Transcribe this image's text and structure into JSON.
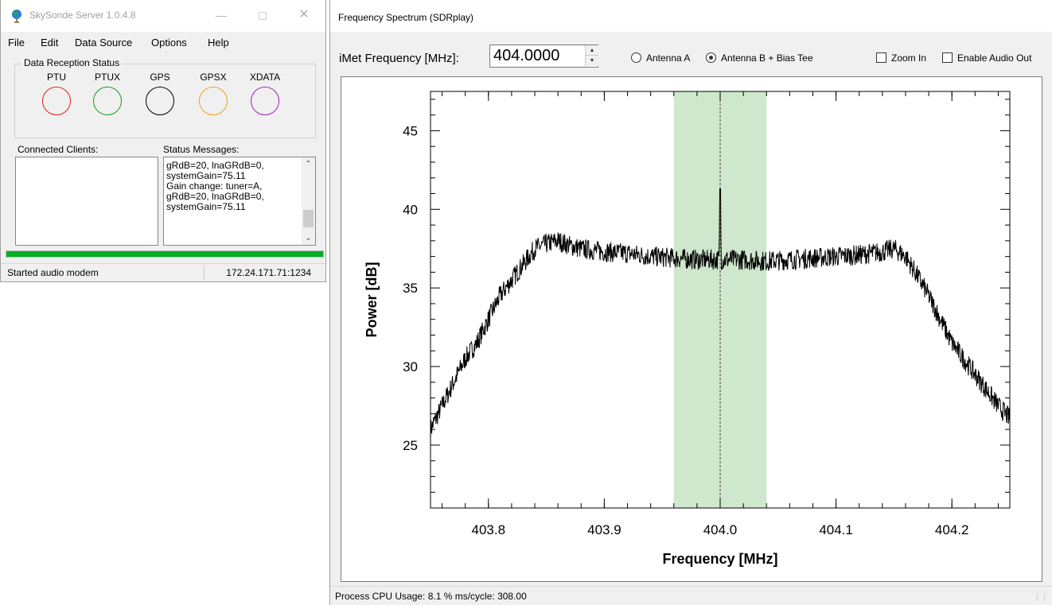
{
  "server_window": {
    "title": "SkySonde Server 1.0.4.8",
    "menu": [
      "File",
      "Edit",
      "Data Source",
      "Options",
      "Help"
    ],
    "reception_group_label": "Data Reception Status",
    "indicators": [
      {
        "label": "PTU",
        "color": "#e02020"
      },
      {
        "label": "PTUX",
        "color": "#1a9a1a"
      },
      {
        "label": "GPS",
        "color": "#000000"
      },
      {
        "label": "GPSX",
        "color": "#f0a020"
      },
      {
        "label": "XDATA",
        "color": "#a020c0"
      }
    ],
    "connected_clients_label": "Connected Clients:",
    "connected_clients": [],
    "status_messages_label": "Status Messages:",
    "status_messages": "gRdB=20, lnaGRdB=0,\nsystemGain=75.11\nGain change: tuner=A,\ngRdB=20, lnaGRdB=0,\nsystemGain=75.11",
    "progress_fraction": 1.0,
    "progress_color": "#06b025",
    "statusbar_text": "Started audio modem",
    "statusbar_address": "172.24.171.71:1234"
  },
  "spectrum_window": {
    "title": "Frequency Spectrum (SDRplay)",
    "frequency_label": "iMet Frequency [MHz]:",
    "frequency_value": "404.0000",
    "antenna_a_label": "Antenna A",
    "antenna_b_label": "Antenna B + Bias Tee",
    "antenna_selected": "B",
    "zoom_in_label": "Zoom In",
    "zoom_in_checked": false,
    "enable_audio_label": "Enable Audio Out",
    "enable_audio_checked": false,
    "statusbar_text": "Process CPU Usage: 8.1 %  ms/cycle: 308.00"
  },
  "chart_data": {
    "type": "line",
    "xlabel": "Frequency [MHz]",
    "ylabel": "Power [dB]",
    "xlim": [
      403.75,
      404.25
    ],
    "ylim": [
      21,
      47.5
    ],
    "xticks": [
      403.8,
      403.9,
      404.0,
      404.1,
      404.2
    ],
    "xtick_labels": [
      "403.8",
      "403.9",
      "404.0",
      "404.1",
      "404.2"
    ],
    "yticks": [
      25,
      30,
      35,
      40,
      45
    ],
    "ytick_labels": [
      "25",
      "30",
      "35",
      "40",
      "45"
    ],
    "grid": false,
    "legend": "none",
    "line_color": "#000000",
    "highlight_band": {
      "x": [
        403.96,
        404.04
      ],
      "color": "#cfe7cc"
    },
    "center_marker": {
      "x": 404.0,
      "style": "dashed"
    },
    "series": [
      {
        "x": [
          403.75,
          403.76,
          403.77,
          403.78,
          403.79,
          403.8,
          403.81,
          403.82,
          403.83,
          403.84,
          403.85,
          403.86,
          403.87,
          403.88,
          403.9,
          403.92,
          403.94,
          403.96,
          403.98,
          403.999,
          404.0,
          404.001,
          404.02,
          404.04,
          404.06,
          404.08,
          404.1,
          404.12,
          404.14,
          404.15,
          404.16,
          404.17,
          404.18,
          404.19,
          404.2,
          404.21,
          404.22,
          404.23,
          404.24,
          404.25
        ],
        "y": [
          26.0,
          27.5,
          29.0,
          30.5,
          31.5,
          33.0,
          34.5,
          35.5,
          36.5,
          37.5,
          37.8,
          38.0,
          37.7,
          37.5,
          37.3,
          37.2,
          37.0,
          36.9,
          36.8,
          36.8,
          41.3,
          36.8,
          36.8,
          36.7,
          36.8,
          36.9,
          37.0,
          37.1,
          37.3,
          37.5,
          37.0,
          35.8,
          34.5,
          33.0,
          31.5,
          30.5,
          29.5,
          28.5,
          27.5,
          26.7
        ]
      }
    ]
  }
}
